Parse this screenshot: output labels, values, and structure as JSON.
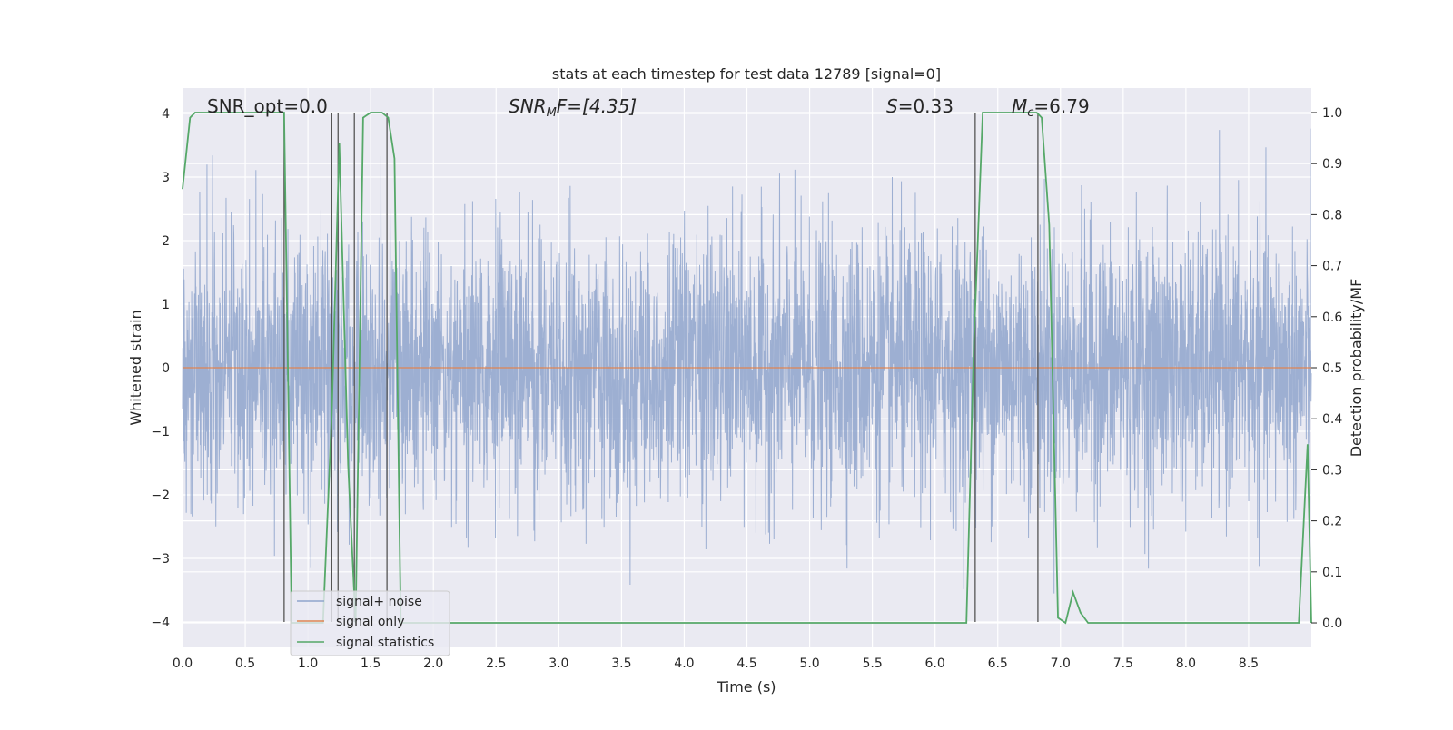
{
  "chart_data": {
    "type": "line",
    "title": "stats at each timestep for test data 12789 [signal=0]",
    "xlabel": "Time (s)",
    "ylabel": "Whitened strain",
    "y2label": "Detection probability/MF",
    "xlim": [
      0.0,
      9.0
    ],
    "ylim": [
      -4.4,
      4.4
    ],
    "y2lim": [
      -0.048,
      1.048
    ],
    "x_ticks": [
      "0.0",
      "0.5",
      "1.0",
      "1.5",
      "2.0",
      "2.5",
      "3.0",
      "3.5",
      "4.0",
      "4.5",
      "5.0",
      "5.5",
      "6.0",
      "6.5",
      "7.0",
      "7.5",
      "8.0",
      "8.5"
    ],
    "y_ticks": [
      "−4",
      "−3",
      "−2",
      "−1",
      "0",
      "1",
      "2",
      "3",
      "4"
    ],
    "y2_ticks": [
      "0.0",
      "0.1",
      "0.2",
      "0.3",
      "0.4",
      "0.5",
      "0.6",
      "0.7",
      "0.8",
      "0.9",
      "1.0"
    ],
    "grid": true,
    "legend_placement": "lower-left",
    "annotations": {
      "snr_opt": "SNR_opt=0.0",
      "snr_mf_label": "SNR",
      "snr_mf_sub": "M",
      "snr_mf_rest": "F=[4.35]",
      "s_label": "S",
      "s_rest": "=0.33",
      "mc_label": "M",
      "mc_sub": "c",
      "mc_rest": "=6.79"
    },
    "series": [
      {
        "name": "signal+ noise",
        "color": "#8fa5cc",
        "x_range": [
          0.0,
          9.0
        ],
        "amplitude_sigma": 1.05,
        "y_extent": [
          -4.0,
          4.0
        ],
        "description": "whitened strain noise sampled densely over the full time range"
      },
      {
        "name": "signal only",
        "color": "#dd8452",
        "x": [
          0.0,
          9.0
        ],
        "y": [
          0.0,
          0.0
        ]
      },
      {
        "name": "signal statistics",
        "color": "#55a868",
        "axis": "right",
        "x": [
          0.0,
          0.06,
          0.1,
          0.75,
          0.81,
          0.87,
          1.02,
          1.12,
          1.19,
          1.25,
          1.32,
          1.38,
          1.44,
          1.5,
          1.59,
          1.64,
          1.69,
          1.74,
          1.79,
          1.84,
          2.0,
          3.0,
          4.0,
          5.0,
          6.0,
          6.25,
          6.31,
          6.38,
          6.81,
          6.85,
          6.91,
          6.98,
          7.04,
          7.1,
          7.16,
          7.22,
          7.5,
          8.0,
          8.5,
          8.9,
          8.97,
          9.0
        ],
        "y": [
          0.85,
          0.99,
          1.0,
          1.0,
          1.0,
          0.0,
          0.0,
          0.0,
          0.41,
          0.94,
          0.31,
          0.0,
          0.99,
          1.0,
          1.0,
          0.99,
          0.91,
          0.0,
          0.0,
          0.0,
          0.0,
          0.0,
          0.0,
          0.0,
          0.0,
          0.0,
          0.55,
          1.0,
          1.0,
          0.99,
          0.78,
          0.01,
          0.0,
          0.06,
          0.02,
          0.0,
          0.0,
          0.0,
          0.0,
          0.0,
          0.35,
          0.0
        ]
      }
    ],
    "vertical_markers_x": [
      0.81,
      1.19,
      1.24,
      1.37,
      1.63,
      6.32,
      6.82
    ]
  }
}
